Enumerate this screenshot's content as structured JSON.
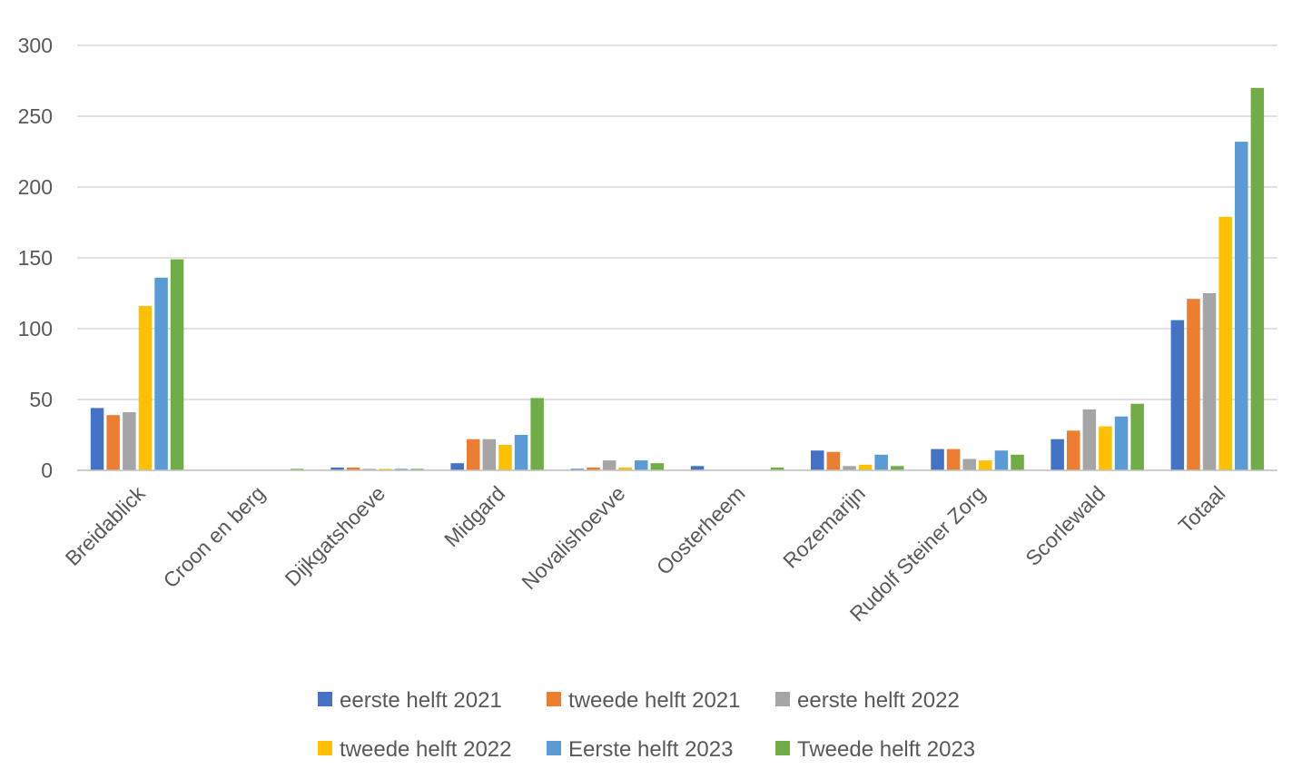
{
  "chart_data": {
    "type": "bar",
    "categories": [
      "Breidablick",
      "Croon en berg",
      "Dijkgatshoeve",
      "Midgard",
      "Novalishoevve",
      "Oosterheem",
      "Rozemarijn",
      "Rudolf Steiner Zorg",
      "Scorlewald",
      "Totaal"
    ],
    "series": [
      {
        "name": "eerste helft 2021",
        "color": "#4472C4",
        "values": [
          44,
          0,
          2,
          5,
          1,
          3,
          14,
          15,
          22,
          106
        ]
      },
      {
        "name": "tweede helft 2021",
        "color": "#ED7D31",
        "values": [
          39,
          0,
          2,
          22,
          2,
          0,
          13,
          15,
          28,
          121
        ]
      },
      {
        "name": "eerste helft 2022",
        "color": "#A5A5A5",
        "values": [
          41,
          0,
          1,
          22,
          7,
          0,
          3,
          8,
          43,
          125
        ]
      },
      {
        "name": "tweede helft 2022",
        "color": "#FFC000",
        "values": [
          116,
          0,
          1,
          18,
          2,
          0,
          4,
          7,
          31,
          179
        ]
      },
      {
        "name": "Eerste helft 2023",
        "color": "#5B9BD5",
        "values": [
          136,
          0,
          1,
          25,
          7,
          0,
          11,
          14,
          38,
          232
        ]
      },
      {
        "name": "Tweede helft 2023",
        "color": "#70AD47",
        "values": [
          149,
          1,
          1,
          51,
          5,
          2,
          3,
          11,
          47,
          270
        ]
      }
    ],
    "ylim": [
      0,
      300
    ],
    "yticks": [
      0,
      50,
      100,
      150,
      200,
      250,
      300
    ],
    "grid": true,
    "legend": "bottom"
  }
}
